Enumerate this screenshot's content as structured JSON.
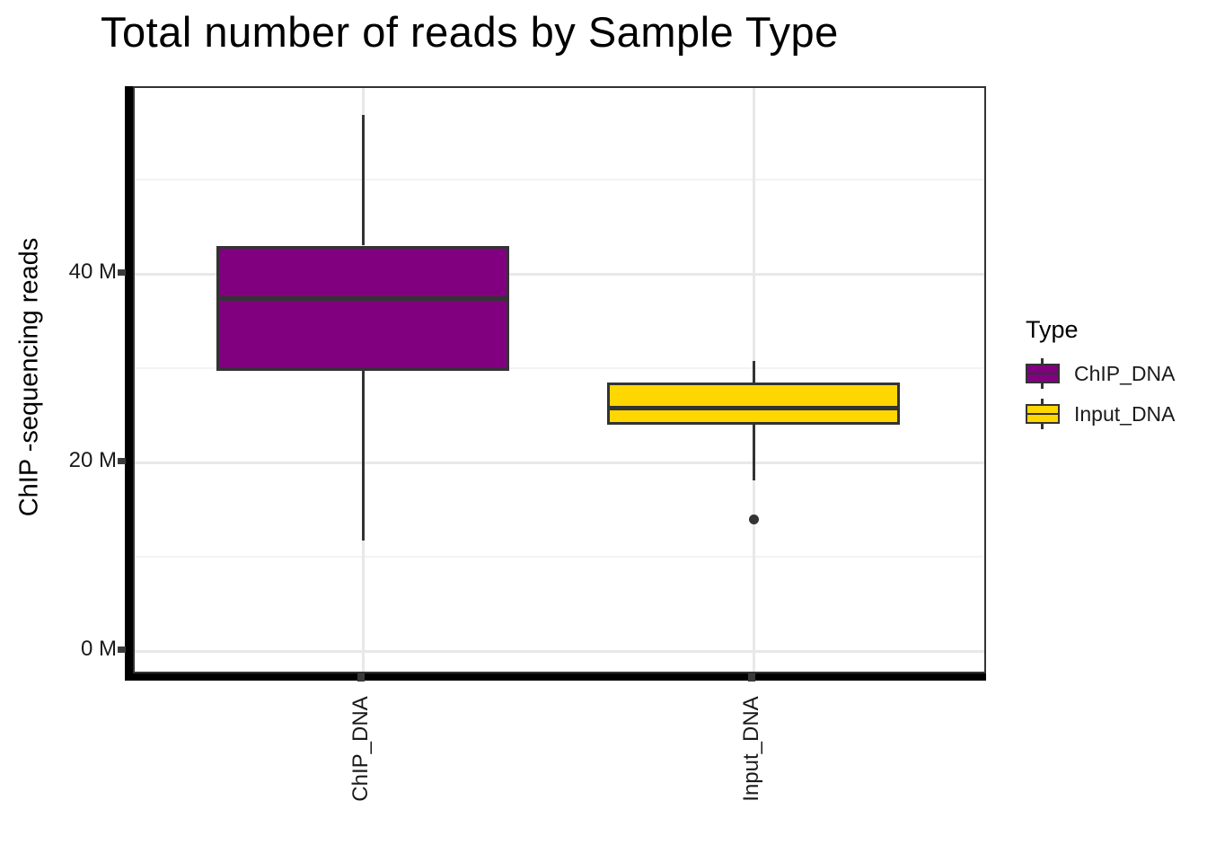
{
  "title": "Total number of reads by Sample Type",
  "y_axis": {
    "title": "ChIP -sequencing reads",
    "ticks": [
      {
        "label": "0 M",
        "value": 0
      },
      {
        "label": "20 M",
        "value": 20
      },
      {
        "label": "40 M",
        "value": 40
      }
    ],
    "minor_values": [
      10,
      30,
      50
    ]
  },
  "x_axis": {
    "categories": [
      "ChIP_DNA",
      "Input_DNA"
    ]
  },
  "legend": {
    "title": "Type",
    "entries": [
      {
        "label": "ChIP_DNA",
        "color": "#800080"
      },
      {
        "label": "Input_DNA",
        "color": "#FFD700"
      }
    ]
  },
  "colors": {
    "chip_fill": "#800080",
    "input_fill": "#FFD700",
    "box_stroke": "#333333",
    "axis_line": "#000000",
    "grid_major": "#e8e8e8",
    "grid_minor": "#f3f3f3"
  },
  "chart_data": {
    "type": "boxplot",
    "title": "Total number of reads by Sample Type",
    "xlabel": "",
    "ylabel": "ChIP -sequencing reads",
    "unit": "millions of reads (M)",
    "ylim": [
      0,
      62
    ],
    "grid": true,
    "legend_position": "right",
    "categories": [
      "ChIP_DNA",
      "Input_DNA"
    ],
    "series": [
      {
        "name": "ChIP_DNA",
        "color": "#800080",
        "whisker_low": 11.7,
        "q1": 29.7,
        "median": 37.4,
        "q3": 43.0,
        "whisker_high": 56.9,
        "outliers": []
      },
      {
        "name": "Input_DNA",
        "color": "#FFD700",
        "whisker_low": 18.1,
        "q1": 24.0,
        "median": 25.8,
        "q3": 28.5,
        "whisker_high": 30.8,
        "outliers": [
          14.0
        ]
      }
    ]
  }
}
